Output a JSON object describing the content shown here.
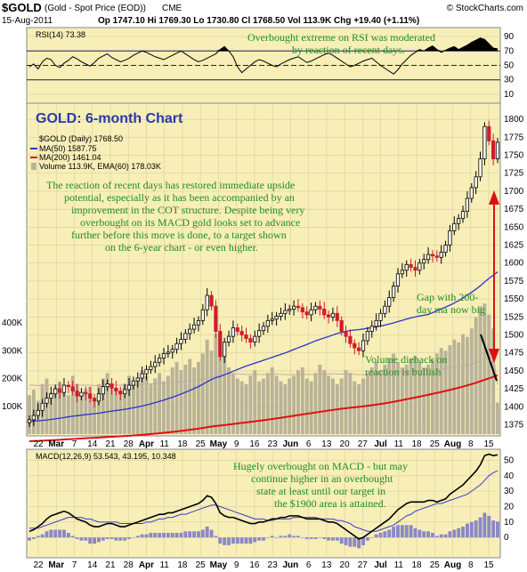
{
  "header": {
    "symbol": "$GOLD",
    "name": "(Gold - Spot Price (EOD))",
    "exchange": "CME",
    "brand": "© StockCharts.com",
    "date": "15-Aug-2011",
    "ohlc": "Op 1747.10  Hi 1769.30  Lo 1730.80  Cl 1768.50  Vol 113.9K  Chg +19.40 (+1.11%)"
  },
  "colors": {
    "panel_bg": "#f7eeb8",
    "candle_up": "#ffffff",
    "candle_down": "#d01c2c",
    "ma50": "#2b35c8",
    "ma200": "#e01010",
    "volume_bar": "#b9b39a",
    "annotation": "#1f8f1f",
    "title": "#2a3aa8",
    "rsi_fill": "#000000"
  },
  "annotations": {
    "rsi_note": [
      "Overbought extreme on RSI was moderated",
      "by reaction of recent days."
    ],
    "main_title": "GOLD: 6-month Chart",
    "main_note": [
      "The reaction of recent days has restored immediate upside",
      "potential, especially as it has been accompanied by an",
      "improvement in the COT structure. Despite being very",
      "overbought on its MACD gold looks set to advance",
      "further before this move is done, to a target shown",
      "on the 6-year chart - or even higher."
    ],
    "gap_note": [
      "Gap with 200-",
      "day ma now big"
    ],
    "volume_note": [
      "Volume dieback on",
      "reaction is bullish"
    ],
    "macd_note": [
      "Hugely overbought on MACD - but may",
      "continue higher in an overbought",
      "state at least until our target in",
      "the $1900 area is attained."
    ]
  },
  "chart_data": [
    {
      "type": "line",
      "panel": "rsi",
      "legend": "RSI(14) 73.38",
      "ylim": [
        0,
        100
      ],
      "yticks": [
        10,
        30,
        50,
        70,
        90
      ],
      "reference_lines": [
        30,
        50,
        70
      ],
      "values": [
        48,
        52,
        45,
        55,
        60,
        58,
        50,
        47,
        53,
        57,
        62,
        59,
        55,
        52,
        49,
        54,
        60,
        63,
        66,
        61,
        58,
        55,
        57,
        60,
        64,
        67,
        70,
        68,
        65,
        62,
        60,
        58,
        61,
        64,
        67,
        70,
        66,
        62,
        58,
        55,
        57,
        60,
        63,
        66,
        72,
        76,
        70,
        62,
        48,
        40,
        45,
        50,
        55,
        58,
        56,
        53,
        50,
        48,
        52,
        55,
        58,
        60,
        62,
        58,
        54,
        56,
        59,
        62,
        65,
        67,
        64,
        60,
        56,
        52,
        48,
        50,
        53,
        56,
        58,
        60,
        55,
        50,
        46,
        42,
        38,
        44,
        52,
        58,
        64,
        68,
        72,
        70,
        74,
        77,
        72,
        68,
        71,
        74,
        76,
        72,
        75,
        78,
        82,
        85,
        88,
        86,
        80,
        74,
        73
      ]
    },
    {
      "type": "bar",
      "panel": "main",
      "legend": [
        "$GOLD (Daily) 1768.50",
        "MA(50) 1587.75",
        "MA(200) 1461.04",
        "Volume 113.9K, EMA(60) 178.03K"
      ],
      "ylim": [
        1362,
        1820
      ],
      "yticks": [
        1375,
        1400,
        1425,
        1450,
        1475,
        1500,
        1525,
        1550,
        1575,
        1600,
        1625,
        1650,
        1675,
        1700,
        1725,
        1750,
        1775,
        1800
      ],
      "volume_ticks": [
        "100K",
        "200K",
        "300K",
        "400K"
      ],
      "volume_max": 480,
      "xticks": [
        "22",
        "Mar",
        "7",
        "14",
        "21",
        "28",
        "Apr",
        "11",
        "18",
        "25",
        "May",
        "9",
        "16",
        "23",
        "Jun",
        "6",
        "13",
        "20",
        "27",
        "Jul",
        "11",
        "18",
        "25",
        "Aug",
        "8",
        "15"
      ],
      "close": [
        1382,
        1388,
        1395,
        1405,
        1412,
        1418,
        1425,
        1420,
        1430,
        1428,
        1422,
        1415,
        1420,
        1418,
        1412,
        1408,
        1418,
        1428,
        1432,
        1426,
        1422,
        1418,
        1424,
        1430,
        1436,
        1440,
        1446,
        1452,
        1456,
        1462,
        1468,
        1474,
        1476,
        1480,
        1488,
        1494,
        1502,
        1508,
        1514,
        1520,
        1535,
        1555,
        1540,
        1505,
        1470,
        1490,
        1498,
        1510,
        1505,
        1500,
        1495,
        1490,
        1498,
        1506,
        1512,
        1520,
        1522,
        1526,
        1530,
        1534,
        1536,
        1540,
        1538,
        1532,
        1528,
        1535,
        1540,
        1536,
        1528,
        1525,
        1530,
        1520,
        1505,
        1498,
        1488,
        1482,
        1478,
        1492,
        1505,
        1512,
        1520,
        1530,
        1540,
        1552,
        1568,
        1585,
        1590,
        1598,
        1594,
        1590,
        1600,
        1605,
        1612,
        1610,
        1608,
        1615,
        1625,
        1645,
        1655,
        1662,
        1672,
        1690,
        1705,
        1720,
        1745,
        1790,
        1770,
        1745,
        1768
      ],
      "volume": [
        140,
        160,
        120,
        180,
        200,
        150,
        170,
        190,
        160,
        140,
        210,
        180,
        150,
        160,
        170,
        130,
        180,
        200,
        220,
        170,
        160,
        150,
        180,
        210,
        190,
        200,
        230,
        210,
        180,
        200,
        220,
        190,
        210,
        240,
        260,
        230,
        250,
        270,
        240,
        260,
        290,
        340,
        300,
        360,
        320,
        280,
        240,
        220,
        200,
        190,
        180,
        210,
        230,
        190,
        200,
        220,
        240,
        210,
        190,
        180,
        200,
        210,
        230,
        240,
        200,
        190,
        220,
        250,
        230,
        210,
        200,
        180,
        200,
        230,
        220,
        190,
        180,
        200,
        220,
        240,
        260,
        230,
        250,
        270,
        290,
        260,
        240,
        250,
        270,
        280,
        260,
        240,
        250,
        270,
        290,
        310,
        300,
        320,
        340,
        330,
        360,
        350,
        380,
        420,
        460,
        470,
        430,
        380,
        114
      ],
      "volume_ema": [
        176,
        176,
        175,
        175,
        176,
        176,
        176,
        177,
        176,
        176,
        177,
        177,
        176,
        176,
        176,
        175,
        175,
        176,
        177,
        177,
        177,
        176,
        177,
        178,
        178,
        178,
        180,
        181,
        181,
        181,
        182,
        182,
        183,
        185,
        187,
        188,
        190,
        192,
        193,
        195,
        198,
        202,
        205,
        210,
        214,
        216,
        217,
        217,
        217,
        216,
        215,
        215,
        215,
        215,
        214,
        215,
        216,
        216,
        215,
        214,
        214,
        214,
        215,
        215,
        215,
        214,
        215,
        216,
        217,
        217,
        217,
        216,
        216,
        216,
        216,
        215,
        214,
        214,
        214,
        215,
        216,
        217,
        218,
        220,
        222,
        223,
        224,
        225,
        226,
        228,
        229,
        229,
        230,
        231,
        233,
        235,
        236,
        238,
        241,
        243,
        246,
        248,
        251,
        257,
        263,
        269,
        275,
        278,
        178
      ]
    },
    {
      "type": "line",
      "panel": "macd",
      "legend": [
        "MACD(12,26,9) 53.543, 43.195, 10.348"
      ],
      "ylim": [
        -12,
        56
      ],
      "yticks": [
        0,
        10,
        20,
        30,
        40,
        50
      ],
      "macd": [
        4,
        5,
        7,
        9,
        12,
        14,
        15,
        16,
        17,
        16,
        14,
        12,
        11,
        10,
        8,
        7,
        7,
        8,
        9,
        9,
        8,
        7,
        7,
        8,
        9,
        10,
        11,
        12,
        13,
        14,
        15,
        15,
        16,
        16,
        17,
        18,
        19,
        20,
        21,
        22,
        24,
        27,
        26,
        22,
        16,
        14,
        13,
        13,
        12,
        11,
        10,
        9,
        9,
        10,
        10,
        11,
        12,
        12,
        13,
        13,
        14,
        14,
        14,
        13,
        12,
        12,
        12,
        12,
        11,
        10,
        10,
        9,
        7,
        5,
        3,
        1,
        -1,
        0,
        2,
        4,
        6,
        8,
        10,
        12,
        15,
        18,
        20,
        22,
        23,
        23,
        23,
        23,
        24,
        24,
        23,
        24,
        25,
        28,
        30,
        32,
        34,
        37,
        40,
        43,
        47,
        53,
        54,
        53,
        53.5
      ],
      "signal": [
        6,
        6,
        6,
        7,
        8,
        9,
        10,
        11,
        12,
        13,
        13,
        13,
        13,
        12,
        12,
        11,
        10,
        10,
        10,
        10,
        10,
        9,
        9,
        9,
        9,
        9,
        9,
        10,
        10,
        11,
        12,
        12,
        13,
        13,
        14,
        15,
        15,
        16,
        17,
        18,
        19,
        20,
        21,
        21,
        20,
        19,
        18,
        17,
        16,
        15,
        14,
        13,
        12,
        12,
        12,
        11,
        11,
        12,
        12,
        12,
        12,
        13,
        13,
        13,
        13,
        13,
        13,
        12,
        12,
        12,
        12,
        11,
        11,
        10,
        9,
        7,
        6,
        5,
        4,
        4,
        4,
        5,
        6,
        7,
        8,
        10,
        12,
        14,
        15,
        17,
        18,
        19,
        20,
        21,
        22,
        22,
        23,
        24,
        25,
        26,
        27,
        28,
        30,
        32,
        34,
        37,
        40,
        42,
        43.2
      ],
      "xticks": [
        "22",
        "Mar",
        "7",
        "14",
        "21",
        "28",
        "Apr",
        "11",
        "18",
        "25",
        "May",
        "9",
        "16",
        "23",
        "Jun",
        "6",
        "13",
        "20",
        "27",
        "Jul",
        "11",
        "18",
        "25",
        "Aug",
        "8",
        "15"
      ]
    }
  ]
}
